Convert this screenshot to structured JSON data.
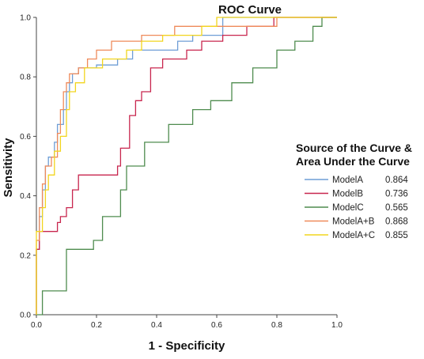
{
  "chart_data": {
    "type": "line",
    "title": "ROC Curve",
    "xlabel": "1 - Specificity",
    "ylabel": "Sensitivity",
    "xlim": [
      0,
      1
    ],
    "ylim": [
      0,
      1
    ],
    "x_ticks": [
      "0.0",
      "0.2",
      "0.4",
      "0.6",
      "0.8",
      "1.0"
    ],
    "y_ticks": [
      "0.0",
      "0.2",
      "0.4",
      "0.6",
      "0.8",
      "1.0"
    ],
    "grid": false,
    "legend": {
      "title_line1": "Source of the Curve &",
      "title_line2": "Area Under the Curve",
      "position": "right"
    },
    "series": [
      {
        "name": "ModelA",
        "auc": "0.864",
        "color": "#6f9ed6",
        "points": [
          [
            0,
            0
          ],
          [
            0,
            0.14
          ],
          [
            0.01,
            0.22
          ],
          [
            0.02,
            0.33
          ],
          [
            0.03,
            0.42
          ],
          [
            0.04,
            0.5
          ],
          [
            0.06,
            0.53
          ],
          [
            0.07,
            0.58
          ],
          [
            0.09,
            0.64
          ],
          [
            0.1,
            0.69
          ],
          [
            0.11,
            0.75
          ],
          [
            0.12,
            0.78
          ],
          [
            0.14,
            0.81
          ],
          [
            0.2,
            0.83
          ],
          [
            0.27,
            0.84
          ],
          [
            0.32,
            0.86
          ],
          [
            0.4,
            0.89
          ],
          [
            0.47,
            0.89
          ],
          [
            0.52,
            0.92
          ],
          [
            0.62,
            0.94
          ],
          [
            0.64,
            1.0
          ],
          [
            1,
            1
          ]
        ]
      },
      {
        "name": "ModelB",
        "auc": "0.736",
        "color": "#c8264e",
        "points": [
          [
            0,
            0
          ],
          [
            0,
            0.11
          ],
          [
            0.01,
            0.22
          ],
          [
            0.03,
            0.28
          ],
          [
            0.07,
            0.28
          ],
          [
            0.08,
            0.31
          ],
          [
            0.1,
            0.33
          ],
          [
            0.12,
            0.36
          ],
          [
            0.14,
            0.42
          ],
          [
            0.15,
            0.47
          ],
          [
            0.27,
            0.47
          ],
          [
            0.28,
            0.5
          ],
          [
            0.31,
            0.56
          ],
          [
            0.33,
            0.67
          ],
          [
            0.35,
            0.72
          ],
          [
            0.38,
            0.75
          ],
          [
            0.42,
            0.83
          ],
          [
            0.5,
            0.86
          ],
          [
            0.55,
            0.89
          ],
          [
            0.62,
            0.92
          ],
          [
            0.7,
            0.94
          ],
          [
            0.75,
            0.97
          ],
          [
            0.79,
            0.97
          ],
          [
            0.82,
            1.0
          ],
          [
            1,
            1
          ]
        ]
      },
      {
        "name": "ModelC",
        "auc": "0.565",
        "color": "#4f8c4f",
        "points": [
          [
            0,
            0
          ],
          [
            0.02,
            0
          ],
          [
            0.02,
            0.08
          ],
          [
            0.1,
            0.08
          ],
          [
            0.14,
            0.22
          ],
          [
            0.19,
            0.22
          ],
          [
            0.22,
            0.25
          ],
          [
            0.28,
            0.33
          ],
          [
            0.3,
            0.42
          ],
          [
            0.36,
            0.5
          ],
          [
            0.44,
            0.58
          ],
          [
            0.52,
            0.64
          ],
          [
            0.58,
            0.69
          ],
          [
            0.65,
            0.72
          ],
          [
            0.72,
            0.78
          ],
          [
            0.8,
            0.83
          ],
          [
            0.86,
            0.89
          ],
          [
            0.92,
            0.92
          ],
          [
            0.95,
            0.97
          ],
          [
            0.97,
            1.0
          ],
          [
            1,
            1
          ]
        ]
      },
      {
        "name": "ModelA+B",
        "auc": "0.868",
        "color": "#ef8a5a",
        "points": [
          [
            0,
            0
          ],
          [
            0,
            0.17
          ],
          [
            0.01,
            0.25
          ],
          [
            0.02,
            0.36
          ],
          [
            0.03,
            0.44
          ],
          [
            0.05,
            0.5
          ],
          [
            0.07,
            0.53
          ],
          [
            0.08,
            0.61
          ],
          [
            0.09,
            0.69
          ],
          [
            0.1,
            0.75
          ],
          [
            0.11,
            0.78
          ],
          [
            0.14,
            0.81
          ],
          [
            0.17,
            0.83
          ],
          [
            0.2,
            0.86
          ],
          [
            0.25,
            0.89
          ],
          [
            0.35,
            0.92
          ],
          [
            0.38,
            0.94
          ],
          [
            0.46,
            0.94
          ],
          [
            0.5,
            0.97
          ],
          [
            0.8,
            0.97
          ],
          [
            0.85,
            1.0
          ],
          [
            1,
            1
          ]
        ]
      },
      {
        "name": "ModelA+C",
        "auc": "0.855",
        "color": "#f2d51e",
        "points": [
          [
            0,
            0
          ],
          [
            0,
            0.19
          ],
          [
            0.02,
            0.28
          ],
          [
            0.03,
            0.36
          ],
          [
            0.04,
            0.42
          ],
          [
            0.06,
            0.47
          ],
          [
            0.08,
            0.55
          ],
          [
            0.1,
            0.6
          ],
          [
            0.11,
            0.69
          ],
          [
            0.13,
            0.75
          ],
          [
            0.16,
            0.78
          ],
          [
            0.22,
            0.83
          ],
          [
            0.3,
            0.86
          ],
          [
            0.35,
            0.89
          ],
          [
            0.42,
            0.92
          ],
          [
            0.55,
            0.94
          ],
          [
            0.6,
            0.97
          ],
          [
            0.72,
            1.0
          ],
          [
            1,
            1
          ]
        ]
      }
    ]
  }
}
